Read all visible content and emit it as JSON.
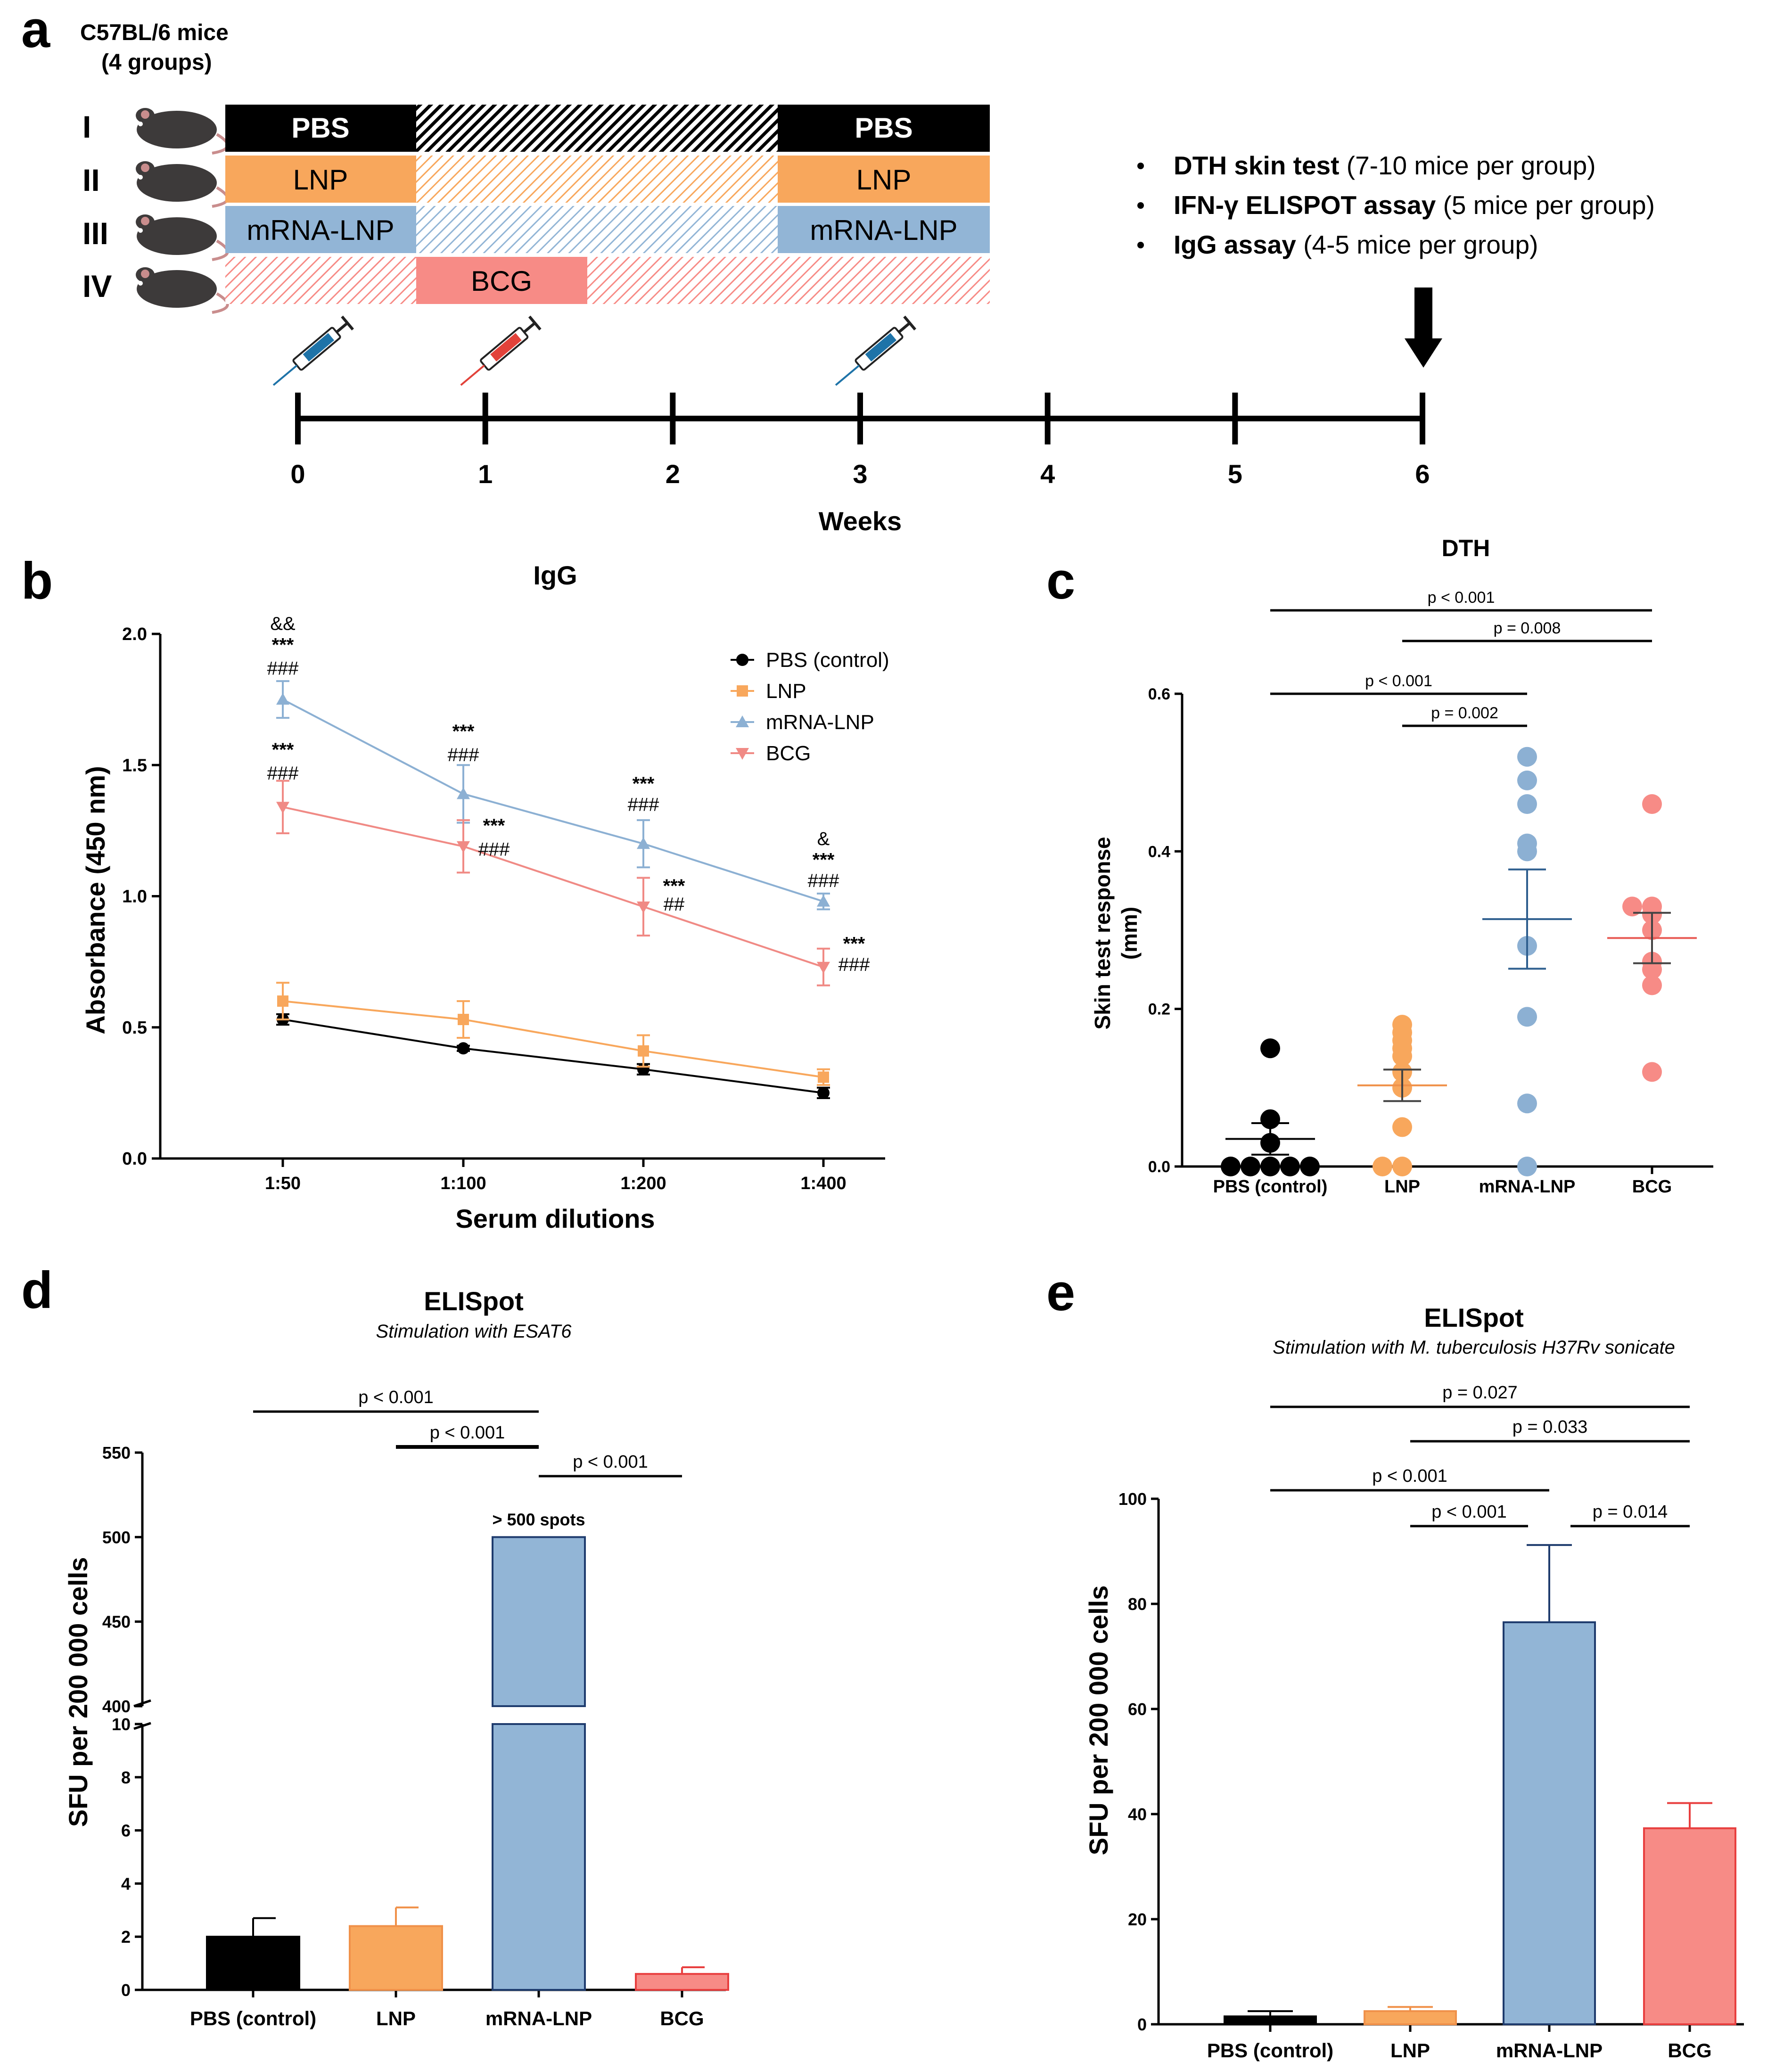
{
  "panel_labels": {
    "a": "a",
    "b": "b",
    "c": "c",
    "d": "d",
    "e": "e"
  },
  "panel_a": {
    "title_line1": "C57BL/6 mice",
    "title_line2": "(4 groups)",
    "groups": [
      {
        "roman": "I",
        "bars": [
          "PBS",
          "PBS"
        ],
        "color": "#000000"
      },
      {
        "roman": "II",
        "bars": [
          "LNP",
          "LNP"
        ],
        "color": "#f8a75c"
      },
      {
        "roman": "III",
        "bars": [
          "mRNA-LNP",
          "mRNA-LNP"
        ],
        "color": "#92b5d6"
      },
      {
        "roman": "IV",
        "bars": [
          "BCG"
        ],
        "color": "#f78b86"
      }
    ],
    "assays": [
      {
        "bold": "DTH skin test",
        "rest": " (7-10 mice per group)"
      },
      {
        "bold": "IFN-γ ELISPOT assay",
        "rest": " (5 mice per group)"
      },
      {
        "bold": "IgG assay",
        "rest": " (4-5 mice per group)"
      }
    ],
    "timeline_ticks": [
      "0",
      "1",
      "2",
      "3",
      "4",
      "5",
      "6"
    ],
    "timeline_label": "Weeks",
    "syringe_weeks": [
      0,
      1,
      3
    ],
    "syringe_colors": [
      "#1e73a8",
      "#e2423a",
      "#1e73a8"
    ]
  },
  "chart_data": [
    {
      "panel": "b",
      "type": "line",
      "title": "IgG",
      "xlabel": "Serum dilutions",
      "ylabel": "Absorbance (450 nm)",
      "categories": [
        "1:50",
        "1:100",
        "1:200",
        "1:400"
      ],
      "ylim": [
        0.0,
        2.0
      ],
      "yticks": [
        "0.0",
        "0.5",
        "1.0",
        "1.5",
        "2.0"
      ],
      "legend_position": "top-right",
      "series": [
        {
          "name": "PBS (control)",
          "color": "#000000",
          "marker": "circle",
          "values": [
            0.53,
            0.42,
            0.34,
            0.25
          ],
          "errors": [
            0.02,
            0.01,
            0.02,
            0.02
          ]
        },
        {
          "name": "LNP",
          "color": "#f8a75c",
          "marker": "square",
          "values": [
            0.6,
            0.53,
            0.41,
            0.31
          ],
          "errors": [
            0.07,
            0.07,
            0.06,
            0.03
          ]
        },
        {
          "name": "mRNA-LNP",
          "color": "#8cb0d3",
          "marker": "triangle-up",
          "values": [
            1.75,
            1.39,
            1.2,
            0.98
          ],
          "errors": [
            0.07,
            0.11,
            0.09,
            0.03
          ]
        },
        {
          "name": "BCG",
          "color": "#f08a85",
          "marker": "triangle-down",
          "values": [
            1.34,
            1.19,
            0.96,
            0.73
          ],
          "errors": [
            0.1,
            0.1,
            0.11,
            0.07
          ]
        }
      ],
      "annotations": [
        {
          "text": "&&",
          "category": "1:50",
          "y": 2.04
        },
        {
          "text": "***",
          "category": "1:50",
          "y": 1.96
        },
        {
          "text": "###",
          "category": "1:50",
          "y": 1.87
        },
        {
          "text": "***",
          "category": "1:50",
          "y": 1.56
        },
        {
          "text": "###",
          "category": "1:50",
          "y": 1.47
        },
        {
          "text": "***",
          "category": "1:100",
          "y": 1.63
        },
        {
          "text": "###",
          "category": "1:100",
          "y": 1.54
        },
        {
          "text": "***",
          "category": "1:100",
          "y": 1.27,
          "offset": "right"
        },
        {
          "text": "###",
          "category": "1:100",
          "y": 1.18,
          "offset": "right"
        },
        {
          "text": "***",
          "category": "1:200",
          "y": 1.43
        },
        {
          "text": "###",
          "category": "1:200",
          "y": 1.35
        },
        {
          "text": "***",
          "category": "1:200",
          "y": 1.04,
          "offset": "right"
        },
        {
          "text": "##",
          "category": "1:200",
          "y": 0.97,
          "offset": "right"
        },
        {
          "text": "&",
          "category": "1:400",
          "y": 1.22
        },
        {
          "text": "***",
          "category": "1:400",
          "y": 1.14
        },
        {
          "text": "###",
          "category": "1:400",
          "y": 1.06
        },
        {
          "text": "***",
          "category": "1:400",
          "y": 0.82,
          "offset": "right"
        },
        {
          "text": "###",
          "category": "1:400",
          "y": 0.74,
          "offset": "right"
        }
      ]
    },
    {
      "panel": "c",
      "type": "scatter",
      "title": "DTH",
      "xlabel": "",
      "ylabel_line1": "Skin test response",
      "ylabel_line2": "(mm)",
      "categories": [
        "PBS (control)",
        "LNP",
        "mRNA-LNP",
        "BCG"
      ],
      "ylim": [
        0.0,
        0.6
      ],
      "yticks": [
        "0.0",
        "0.2",
        "0.4",
        "0.6"
      ],
      "groups": [
        {
          "name": "PBS (control)",
          "color": "#000000",
          "mean": 0.035,
          "sem": 0.02,
          "points": [
            0.0,
            0.0,
            0.0,
            0.0,
            0.0,
            0.03,
            0.06,
            0.15
          ]
        },
        {
          "name": "LNP",
          "color": "#f8a75c",
          "mean": 0.103,
          "sem": 0.02,
          "points": [
            0.0,
            0.0,
            0.05,
            0.1,
            0.12,
            0.14,
            0.15,
            0.16,
            0.17,
            0.18
          ]
        },
        {
          "name": "mRNA-LNP",
          "color": "#8cb0d3",
          "mean": 0.314,
          "sem": 0.063,
          "points": [
            0.0,
            0.08,
            0.19,
            0.28,
            0.4,
            0.41,
            0.46,
            0.49,
            0.52
          ]
        },
        {
          "name": "BCG",
          "color": "#f78b86",
          "mean": 0.29,
          "sem": 0.032,
          "points": [
            0.12,
            0.23,
            0.25,
            0.26,
            0.3,
            0.32,
            0.33,
            0.33,
            0.46
          ]
        }
      ],
      "comparisons": [
        {
          "label": "p < 0.001",
          "from": 0,
          "to": 3
        },
        {
          "label": "p = 0.008",
          "from": 1,
          "to": 3
        },
        {
          "label": "p < 0.001",
          "from": 0,
          "to": 2
        },
        {
          "label": "p = 0.002",
          "from": 1,
          "to": 2
        }
      ]
    },
    {
      "panel": "d",
      "type": "bar",
      "title": "ELISpot",
      "subtitle": "Stimulation with ESAT6",
      "ylabel": "SFU per 200 000 cells",
      "categories": [
        "PBS (control)",
        "LNP",
        "mRNA-LNP",
        "BCG"
      ],
      "values": [
        2.0,
        2.4,
        500,
        0.6
      ],
      "errors": [
        0.7,
        0.7,
        0,
        0.25
      ],
      "colors": [
        "#000000",
        "#f8a75c",
        "#92b5d6",
        "#f78b86"
      ],
      "edge_colors": [
        "#000000",
        "#f0914a",
        "#1f3c6e",
        "#e83f3f"
      ],
      "axis_break": {
        "lower_ylim": [
          0,
          10
        ],
        "lower_ticks": [
          "0",
          "2",
          "4",
          "6",
          "8",
          "10"
        ],
        "upper_ylim": [
          400,
          550
        ],
        "upper_ticks": [
          "400",
          "450",
          "500",
          "550"
        ]
      },
      "bar_label": {
        "text": "> 500 spots",
        "category": "mRNA-LNP"
      },
      "comparisons": [
        {
          "label": "p < 0.001",
          "from": 0,
          "to": 2
        },
        {
          "label": "p < 0.001",
          "from": 1,
          "to": 2
        },
        {
          "label": "p < 0.001",
          "from": 2,
          "to": 3
        }
      ]
    },
    {
      "panel": "e",
      "type": "bar",
      "title": "ELISpot",
      "subtitle": "Stimulation with M. tuberculosis H37Rv sonicate",
      "ylabel": "SFU per 200 000 cells",
      "categories": [
        "PBS (control)",
        "LNP",
        "mRNA-LNP",
        "BCG"
      ],
      "values": [
        1.5,
        2.5,
        76.5,
        37.3
      ],
      "errors": [
        1.0,
        0.8,
        14.7,
        4.8
      ],
      "colors": [
        "#000000",
        "#f8a75c",
        "#92b5d6",
        "#f78b86"
      ],
      "edge_colors": [
        "#000000",
        "#f0914a",
        "#1f3c6e",
        "#e83f3f"
      ],
      "ylim": [
        0,
        100
      ],
      "yticks": [
        "0",
        "20",
        "40",
        "60",
        "80",
        "100"
      ],
      "comparisons": [
        {
          "label": "p = 0.027",
          "from": 0,
          "to": 3
        },
        {
          "label": "p = 0.033",
          "from": 1,
          "to": 3
        },
        {
          "label": "p < 0.001",
          "from": 0,
          "to": 2
        },
        {
          "label": "p < 0.001",
          "from": 1,
          "to": 2
        },
        {
          "label": "p = 0.014",
          "from": 2,
          "to": 3
        }
      ]
    }
  ]
}
